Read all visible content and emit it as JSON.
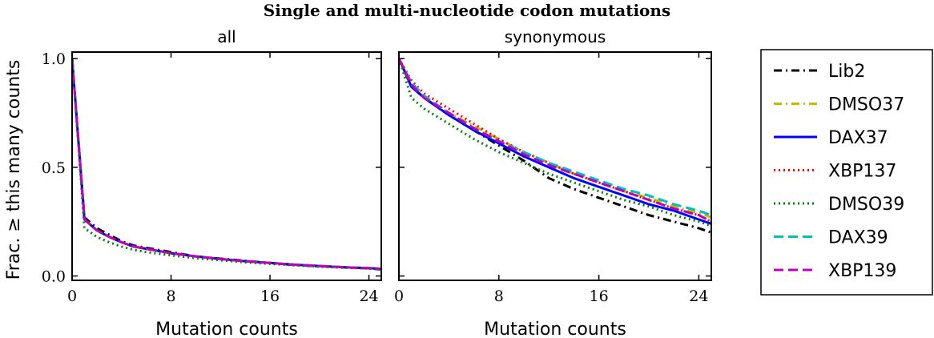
{
  "figure_title": "Single and multi-nucleotide codon mutations",
  "shared_ylabel": "Frac. ≥ this many counts",
  "legend": {
    "placement": "right, outside plots",
    "entries": [
      {
        "name": "Lib2",
        "color": "#000000",
        "dash": "dashdot"
      },
      {
        "name": "DMSO37",
        "color": "#bfbf00",
        "dash": "dashdot"
      },
      {
        "name": "DAX37",
        "color": "#0000ff",
        "dash": "solid"
      },
      {
        "name": "XBP137",
        "color": "#ff0000",
        "dash": "dotted"
      },
      {
        "name": "DMSO39",
        "color": "#008000",
        "dash": "dotted"
      },
      {
        "name": "DAX39",
        "color": "#00bfbf",
        "dash": "dashed"
      },
      {
        "name": "XBP139",
        "color": "#bf00bf",
        "dash": "dashed"
      }
    ]
  },
  "chart_data": [
    {
      "type": "line",
      "title": "all",
      "xlabel": "Mutation counts",
      "ylabel": "Frac. ≥ this many counts",
      "xlim": [
        0,
        25
      ],
      "ylim": [
        -0.02,
        1.03
      ],
      "xticks": [
        0,
        8,
        16,
        24
      ],
      "yticks": [
        0.0,
        0.5,
        1.0
      ],
      "ytick_labels": [
        "0.0",
        "0.5",
        "1.0"
      ],
      "grid": false,
      "x": [
        0,
        1,
        2,
        3,
        4,
        5,
        6,
        8,
        10,
        12,
        14,
        16,
        18,
        20,
        22,
        24,
        25
      ],
      "series": [
        {
          "name": "Lib2",
          "values": [
            1.0,
            0.27,
            0.22,
            0.19,
            0.16,
            0.14,
            0.13,
            0.11,
            0.09,
            0.08,
            0.07,
            0.06,
            0.05,
            0.045,
            0.04,
            0.035,
            0.03
          ]
        },
        {
          "name": "DMSO37",
          "values": [
            1.0,
            0.26,
            0.21,
            0.18,
            0.155,
            0.135,
            0.125,
            0.105,
            0.09,
            0.078,
            0.068,
            0.06,
            0.052,
            0.046,
            0.04,
            0.036,
            0.033
          ]
        },
        {
          "name": "DAX37",
          "values": [
            1.0,
            0.26,
            0.21,
            0.18,
            0.155,
            0.135,
            0.125,
            0.105,
            0.09,
            0.078,
            0.068,
            0.06,
            0.052,
            0.046,
            0.04,
            0.036,
            0.033
          ]
        },
        {
          "name": "XBP137",
          "values": [
            1.0,
            0.26,
            0.21,
            0.18,
            0.155,
            0.135,
            0.125,
            0.105,
            0.09,
            0.078,
            0.068,
            0.06,
            0.052,
            0.046,
            0.04,
            0.036,
            0.033
          ]
        },
        {
          "name": "DMSO39",
          "values": [
            1.0,
            0.22,
            0.18,
            0.155,
            0.135,
            0.12,
            0.11,
            0.095,
            0.082,
            0.072,
            0.063,
            0.056,
            0.049,
            0.043,
            0.038,
            0.034,
            0.031
          ]
        },
        {
          "name": "DAX39",
          "values": [
            1.0,
            0.26,
            0.21,
            0.18,
            0.155,
            0.135,
            0.125,
            0.105,
            0.09,
            0.078,
            0.068,
            0.06,
            0.052,
            0.046,
            0.04,
            0.036,
            0.033
          ]
        },
        {
          "name": "XBP139",
          "values": [
            1.0,
            0.26,
            0.21,
            0.18,
            0.155,
            0.135,
            0.125,
            0.105,
            0.09,
            0.078,
            0.068,
            0.06,
            0.052,
            0.046,
            0.04,
            0.036,
            0.033
          ]
        }
      ]
    },
    {
      "type": "line",
      "title": "synonymous",
      "xlabel": "Mutation counts",
      "ylabel": "",
      "xlim": [
        0,
        25
      ],
      "ylim": [
        -0.02,
        1.03
      ],
      "xticks": [
        0,
        8,
        16,
        24
      ],
      "yticks": [
        0.0,
        0.5,
        1.0
      ],
      "ytick_labels": [
        "",
        "",
        ""
      ],
      "grid": false,
      "x": [
        0,
        1,
        2,
        4,
        6,
        8,
        10,
        12,
        14,
        16,
        18,
        20,
        22,
        24,
        25
      ],
      "series": [
        {
          "name": "Lib2",
          "values": [
            1.0,
            0.88,
            0.82,
            0.74,
            0.67,
            0.6,
            0.53,
            0.45,
            0.4,
            0.36,
            0.32,
            0.28,
            0.25,
            0.22,
            0.2
          ]
        },
        {
          "name": "DMSO37",
          "values": [
            1.0,
            0.88,
            0.82,
            0.75,
            0.69,
            0.63,
            0.57,
            0.52,
            0.47,
            0.43,
            0.39,
            0.36,
            0.32,
            0.29,
            0.27
          ]
        },
        {
          "name": "DAX37",
          "values": [
            1.0,
            0.87,
            0.82,
            0.74,
            0.67,
            0.61,
            0.55,
            0.5,
            0.45,
            0.41,
            0.37,
            0.33,
            0.3,
            0.26,
            0.24
          ]
        },
        {
          "name": "XBP137",
          "values": [
            1.0,
            0.9,
            0.84,
            0.77,
            0.7,
            0.63,
            0.57,
            0.52,
            0.47,
            0.43,
            0.39,
            0.35,
            0.31,
            0.28,
            0.25
          ]
        },
        {
          "name": "DMSO39",
          "values": [
            1.0,
            0.82,
            0.77,
            0.7,
            0.63,
            0.57,
            0.52,
            0.47,
            0.43,
            0.39,
            0.35,
            0.32,
            0.28,
            0.25,
            0.23
          ]
        },
        {
          "name": "DAX39",
          "values": [
            1.0,
            0.89,
            0.83,
            0.75,
            0.68,
            0.62,
            0.57,
            0.52,
            0.48,
            0.44,
            0.4,
            0.37,
            0.33,
            0.3,
            0.28
          ]
        },
        {
          "name": "XBP139",
          "values": [
            1.0,
            0.88,
            0.82,
            0.75,
            0.68,
            0.62,
            0.56,
            0.51,
            0.47,
            0.43,
            0.39,
            0.35,
            0.31,
            0.28,
            0.25
          ]
        }
      ]
    }
  ]
}
